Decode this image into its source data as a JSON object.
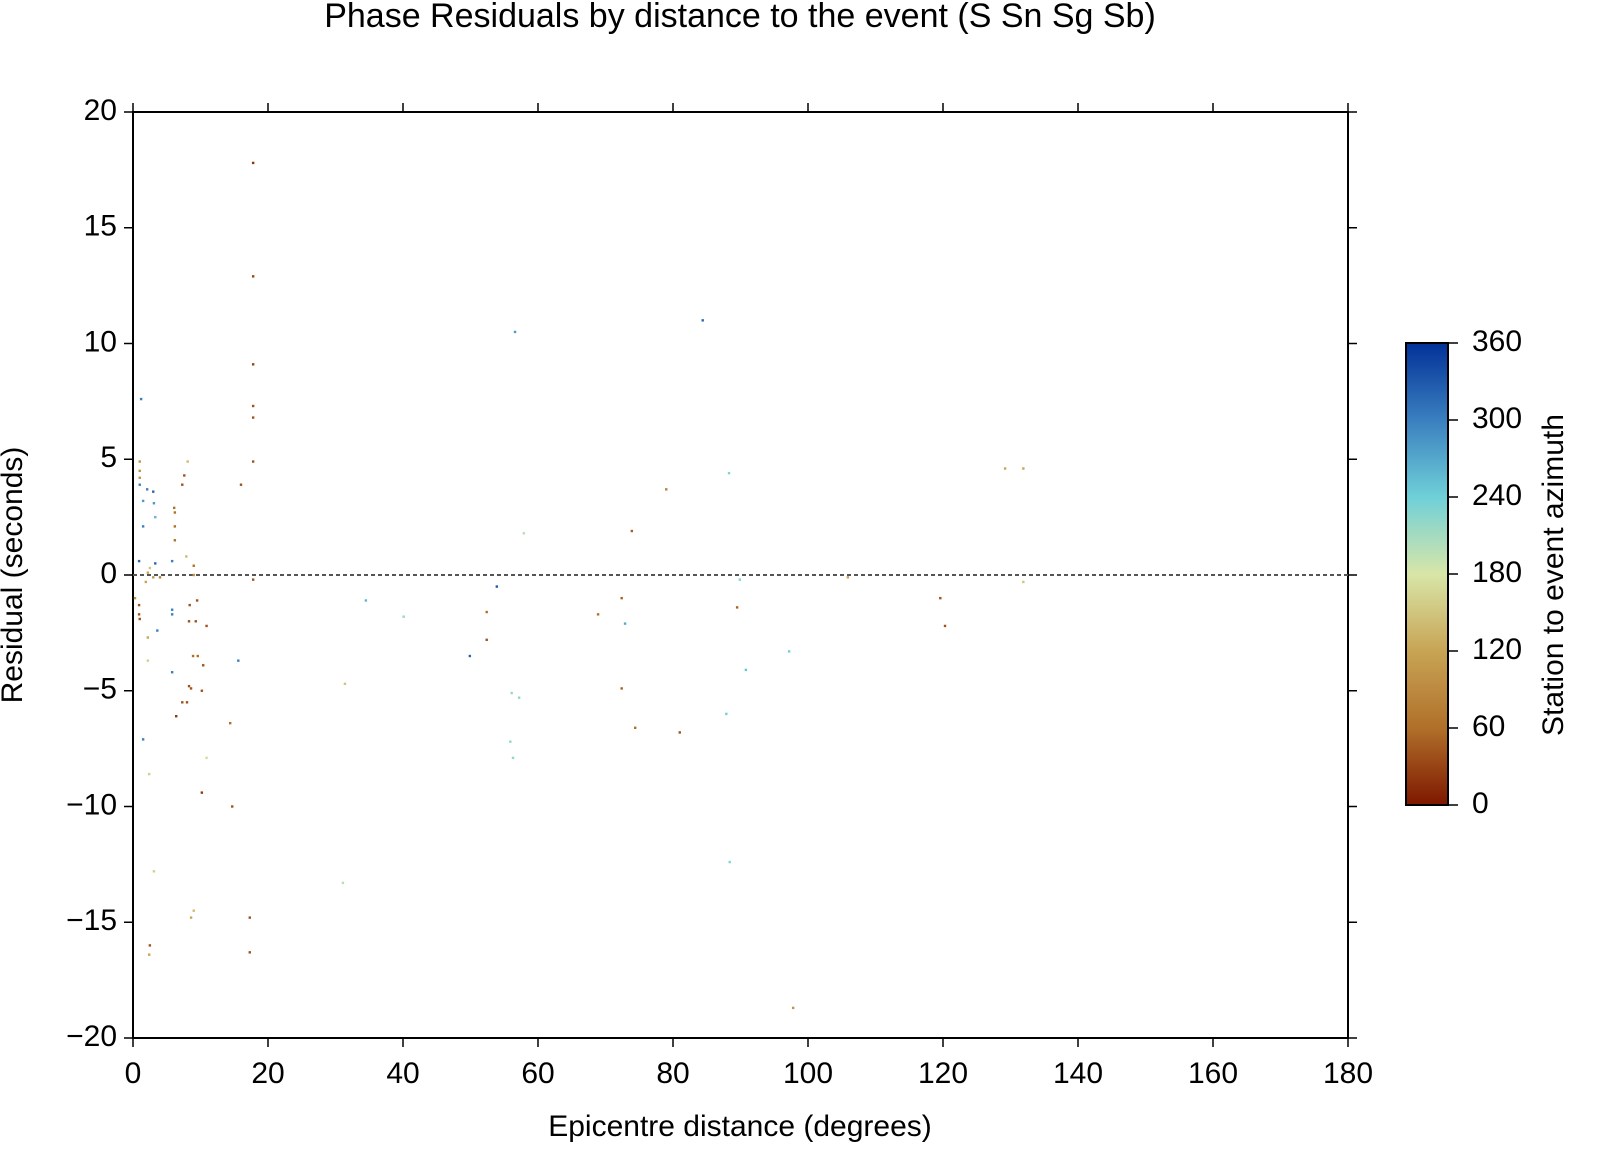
{
  "chart_data": {
    "type": "scatter",
    "title": "Phase Residuals by distance to the event (S Sn Sg Sb)",
    "x_label": "Epicentre distance (degrees)",
    "y_label": "Residual (seconds)",
    "colorbar_label": "Station to event azimuth",
    "xlim": [
      0,
      180
    ],
    "xticks": [
      0,
      20,
      40,
      60,
      80,
      100,
      120,
      140,
      160,
      180
    ],
    "ylim": [
      -20,
      20
    ],
    "yticks": [
      {
        "value": -20,
        "label": "−20"
      },
      {
        "value": -15,
        "label": "−15"
      },
      {
        "value": -10,
        "label": "−10"
      },
      {
        "value": -5,
        "label": "−5"
      },
      0,
      5,
      10,
      15,
      20
    ],
    "clim": [
      0,
      360
    ],
    "cticks": [
      0,
      60,
      120,
      180,
      240,
      300,
      360
    ],
    "colormap": [
      "#7e1700",
      "#b0702a",
      "#c8a455",
      "#d8e6a8",
      "#6fd0d8",
      "#3a7fbf",
      "#023198"
    ],
    "reference_line": 0,
    "series": [
      {
        "x": [
          17.8,
          17.8,
          17.8,
          17.8,
          17.8,
          17.8,
          17.8,
          16.0,
          17.3,
          17.3,
          1.2,
          56.6,
          84.4,
          88.3,
          79.0,
          73.9,
          57.9,
          129.2,
          131.9,
          34.5,
          40.1,
          53.9,
          52.4,
          52.4,
          49.9,
          31.4,
          56.1,
          57.2,
          55.9,
          56.3,
          31.1,
          68.9,
          72.4,
          72.9,
          72.4,
          74.4,
          81.0,
          89.5,
          89.9,
          90.8,
          97.2,
          87.9,
          88.4,
          97.8,
          119.6,
          120.3,
          105.9,
          131.9,
          15.6,
          14.4,
          14.7,
          10.2,
          10.9,
          9.0,
          8.6,
          3.1,
          2.5,
          2.4,
          2.4,
          1.5,
          6.4,
          7.3,
          8.0,
          8.3,
          8.6,
          10.2,
          5.8,
          10.4,
          9.6,
          8.9,
          10.9,
          9.3,
          8.3,
          8.4,
          9.5,
          5.8,
          5.8,
          3.6,
          2.2,
          2.2,
          1.0,
          0.9,
          0.9,
          0.3,
          3.3,
          5.8,
          7.9,
          6.2,
          6.2,
          6.2,
          6.1,
          7.3,
          7.6,
          8.1,
          3.1,
          3.3,
          3.0,
          2.1,
          1.5,
          1.5,
          1.0,
          1.0,
          1.0,
          1.0,
          0.9,
          2.2,
          1.9,
          2.5,
          3.0,
          4.0,
          9.0,
          9.0
        ],
        "values": [
          17.8,
          12.9,
          9.1,
          7.3,
          6.8,
          4.9,
          -0.2,
          3.9,
          -14.8,
          -16.3,
          7.6,
          10.5,
          11.0,
          4.4,
          3.7,
          1.9,
          1.8,
          4.6,
          4.6,
          -1.1,
          -1.8,
          -0.5,
          -1.6,
          -2.8,
          -3.5,
          -4.7,
          -5.1,
          -5.3,
          -7.2,
          -7.9,
          -13.3,
          -1.7,
          -1.0,
          -2.1,
          -4.9,
          -6.6,
          -6.8,
          -1.4,
          -0.2,
          -4.1,
          -3.3,
          -6.0,
          -12.4,
          -18.7,
          -1.0,
          -2.2,
          -0.1,
          -0.3,
          -3.7,
          -6.4,
          -10.0,
          -9.4,
          -7.9,
          -14.5,
          -14.8,
          -12.8,
          -16.0,
          -16.4,
          -8.6,
          -7.1,
          -6.1,
          -5.5,
          -5.5,
          -4.8,
          -4.9,
          -5.0,
          -4.2,
          -3.9,
          -3.5,
          -3.5,
          -2.2,
          -2.0,
          -2.0,
          -1.3,
          -1.1,
          -1.5,
          -1.7,
          -2.4,
          -3.7,
          -2.7,
          -1.9,
          -1.7,
          -1.3,
          -1.0,
          0.5,
          0.6,
          0.8,
          1.5,
          2.1,
          2.7,
          2.9,
          3.9,
          4.3,
          4.9,
          3.1,
          2.5,
          3.6,
          3.7,
          3.2,
          2.1,
          4.9,
          4.5,
          4.2,
          3.9,
          0.6,
          0.1,
          -0.3,
          0.3,
          -0.1,
          -0.1,
          0.4,
          0.0
        ],
        "azimuth": [
          20,
          30,
          30,
          40,
          40,
          40,
          40,
          40,
          40,
          40,
          300,
          280,
          320,
          230,
          80,
          50,
          200,
          120,
          120,
          260,
          220,
          330,
          60,
          40,
          320,
          150,
          220,
          220,
          220,
          220,
          200,
          60,
          50,
          270,
          50,
          60,
          40,
          50,
          230,
          250,
          240,
          240,
          230,
          100,
          40,
          40,
          120,
          150,
          300,
          60,
          40,
          20,
          170,
          140,
          120,
          160,
          40,
          120,
          160,
          300,
          20,
          40,
          40,
          40,
          40,
          40,
          300,
          40,
          60,
          60,
          40,
          40,
          40,
          40,
          40,
          300,
          300,
          300,
          160,
          120,
          40,
          40,
          40,
          100,
          320,
          300,
          140,
          60,
          60,
          60,
          60,
          40,
          40,
          140,
          280,
          260,
          320,
          300,
          280,
          300,
          100,
          100,
          100,
          300,
          320,
          120,
          120,
          150,
          100,
          80,
          60,
          100
        ]
      }
    ]
  }
}
